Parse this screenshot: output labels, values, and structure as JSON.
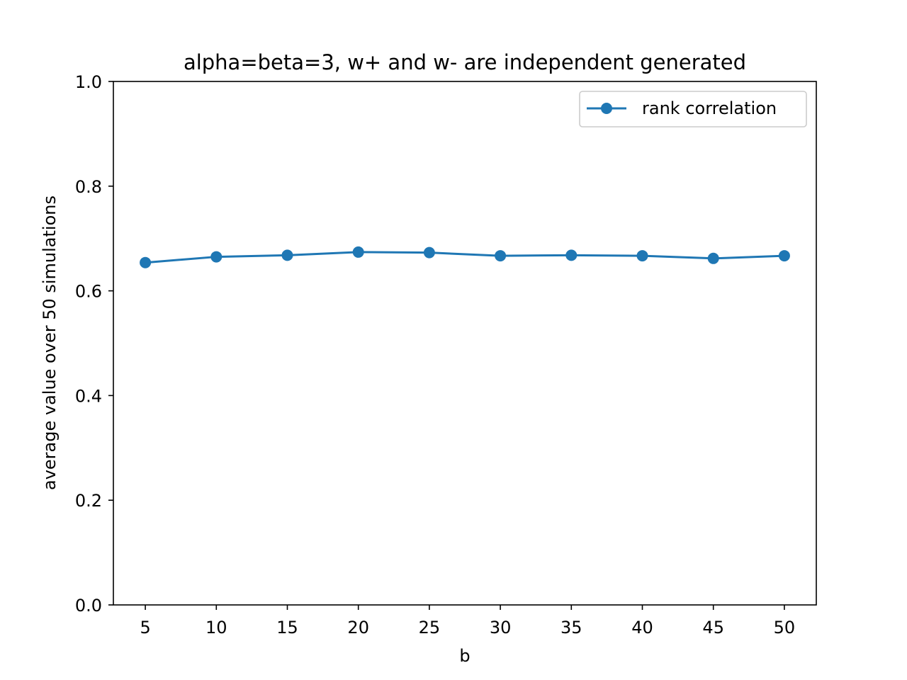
{
  "chart_data": {
    "type": "line",
    "title": "alpha=beta=3, w+ and w- are independent generated",
    "xlabel": "b",
    "ylabel": "average value over 50 simulations",
    "x": [
      5,
      10,
      15,
      20,
      25,
      30,
      35,
      40,
      45,
      50
    ],
    "series": [
      {
        "name": "rank correlation",
        "color": "#1f77b4",
        "marker": "circle",
        "values": [
          0.654,
          0.665,
          0.668,
          0.674,
          0.673,
          0.667,
          0.668,
          0.667,
          0.662,
          0.667
        ]
      }
    ],
    "xticks": [
      "5",
      "10",
      "15",
      "20",
      "25",
      "30",
      "35",
      "40",
      "45",
      "50"
    ],
    "yticks": [
      "0.0",
      "0.2",
      "0.4",
      "0.6",
      "0.8",
      "1.0"
    ],
    "xlim": [
      2.75,
      52.25
    ],
    "ylim": [
      0.0,
      1.0
    ],
    "grid": false,
    "legend_position": "top-right"
  }
}
